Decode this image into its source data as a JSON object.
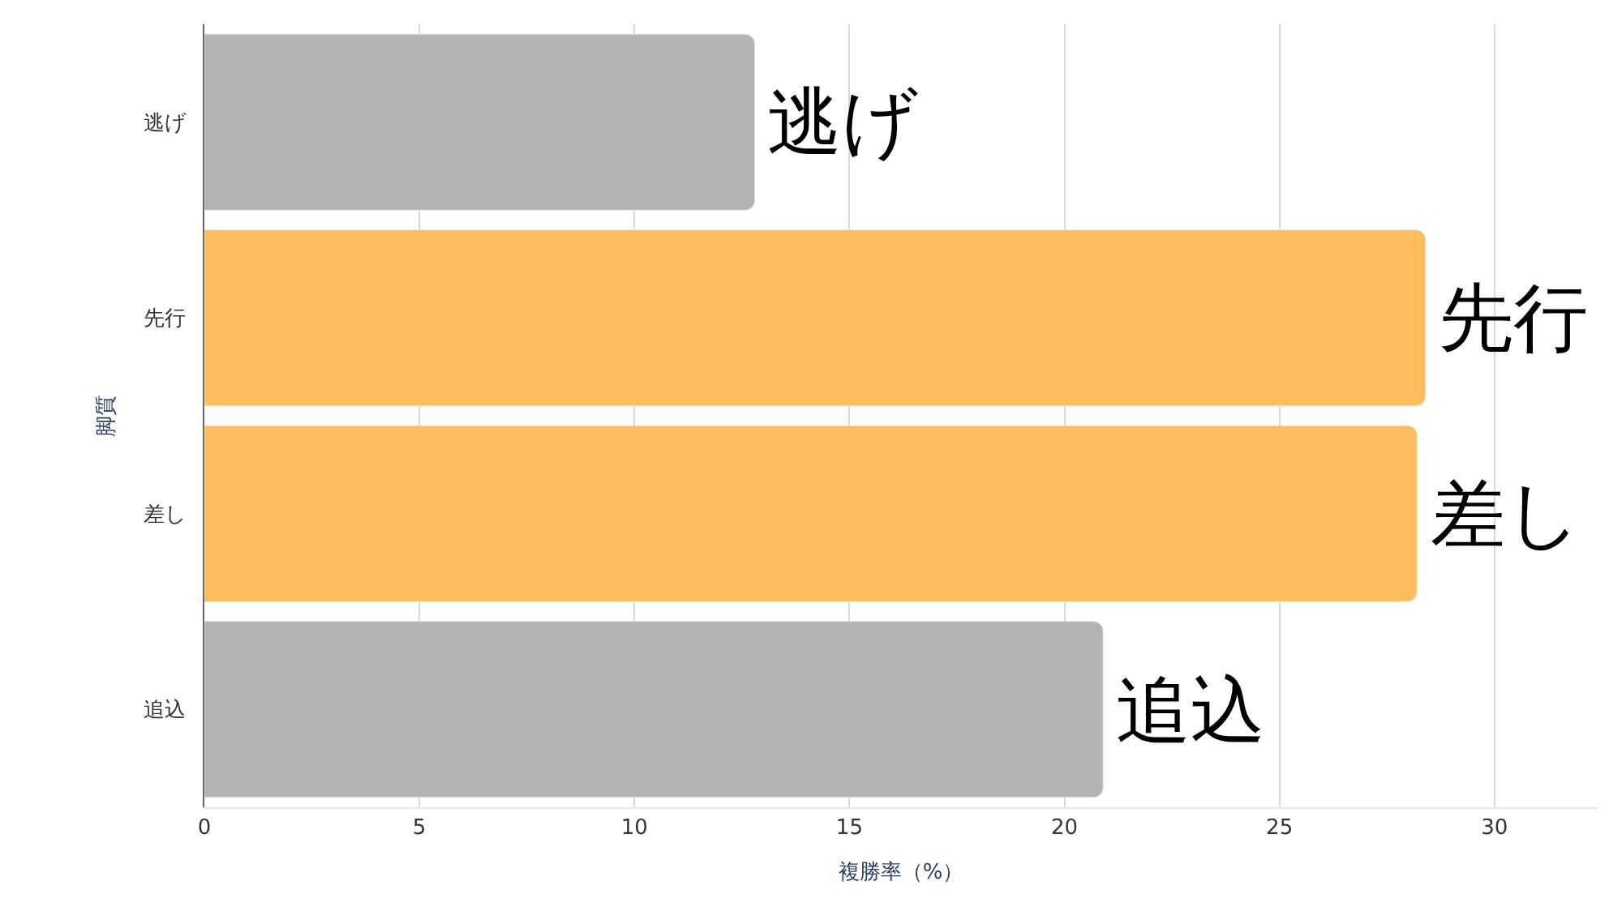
{
  "chart_data": {
    "type": "bar",
    "orientation": "horizontal",
    "xlabel": "複勝率（%）",
    "ylabel": "脚質",
    "categories": [
      "逃げ",
      "先行",
      "差し",
      "追込"
    ],
    "values": [
      12.8,
      28.4,
      28.2,
      20.9
    ],
    "colors": [
      "#b3b3b3",
      "#ffbe5c",
      "#ffbe5c",
      "#b3b3b3"
    ],
    "xlim": [
      0,
      32.4
    ],
    "xticks": [
      0,
      5,
      10,
      15,
      20,
      25,
      30
    ],
    "grid": "x",
    "annotations": [
      {
        "text": "逃げ",
        "x": 12.8,
        "y": "逃げ"
      },
      {
        "text": "先行",
        "x": 28.4,
        "y": "先行"
      },
      {
        "text": "差し",
        "x": 28.2,
        "y": "差し"
      },
      {
        "text": "追込",
        "x": 20.9,
        "y": "追込"
      }
    ]
  }
}
